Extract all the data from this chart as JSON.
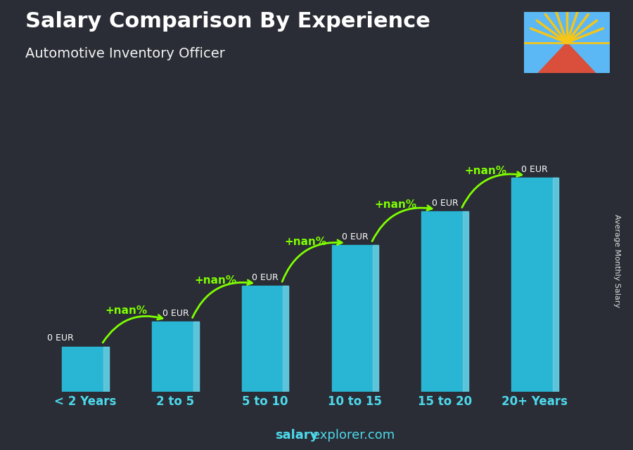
{
  "title": "Salary Comparison By Experience",
  "subtitle": "Automotive Inventory Officer",
  "categories": [
    "< 2 Years",
    "2 to 5",
    "5 to 10",
    "10 to 15",
    "15 to 20",
    "20+ Years"
  ],
  "heights": [
    1.0,
    1.55,
    2.35,
    3.25,
    4.0,
    4.75
  ],
  "bar_color": "#29b6d4",
  "bar_highlight": "#7ecfe0",
  "background_color": "#2a2d35",
  "title_color": "#ffffff",
  "subtitle_color": "#ffffff",
  "tick_color": "#4dd9ec",
  "green_color": "#7fff00",
  "nan_label": "+nan%",
  "eur_label": "0 EUR",
  "ylabel": "Average Monthly Salary",
  "watermark_bold": "salary",
  "watermark_normal": "explorer.com",
  "arrow_color": "#7fff00",
  "flag_blue": "#5bb8f5",
  "flag_yellow": "#f5c518",
  "flag_red": "#d94f3b"
}
